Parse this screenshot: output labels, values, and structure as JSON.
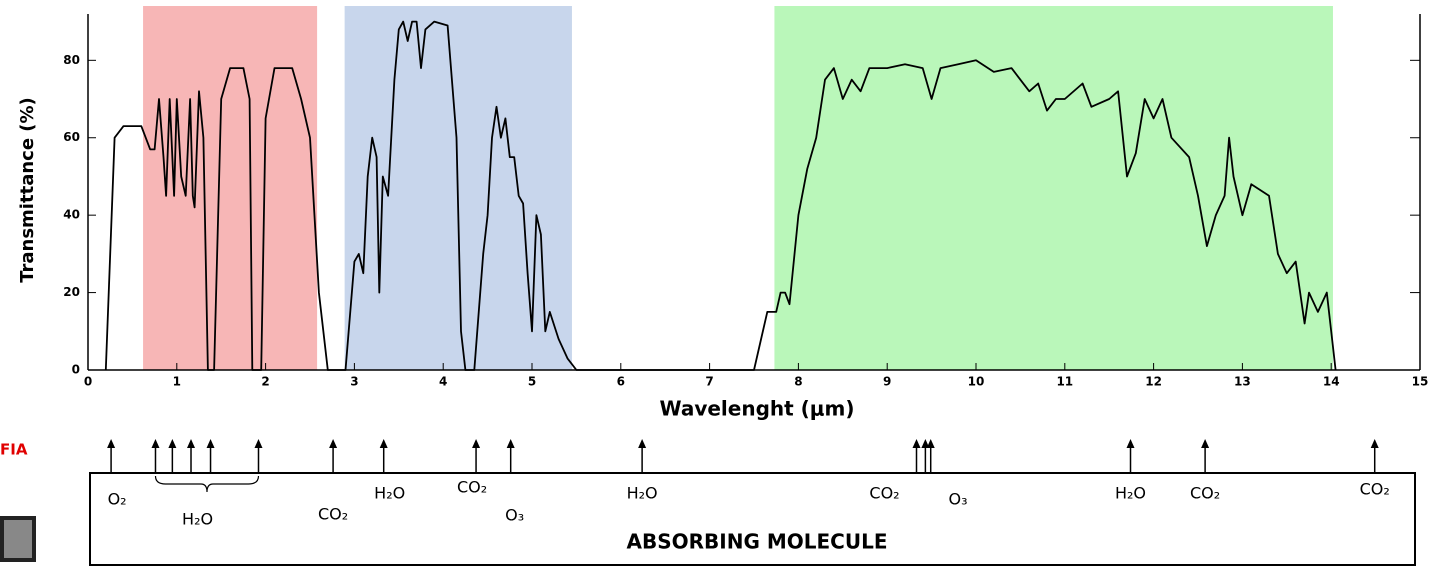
{
  "chart_data": {
    "type": "line",
    "xlabel": "Wavelenght  (μm)",
    "ylabel": "Transmittance (%)",
    "color": "#000000",
    "xlim": [
      0,
      15
    ],
    "ylim": [
      0,
      93
    ],
    "xticks": [
      0,
      1,
      2,
      3,
      4,
      5,
      6,
      7,
      8,
      9,
      10,
      11,
      12,
      13,
      14,
      15
    ],
    "yticks": [
      0,
      20,
      40,
      60,
      80
    ],
    "bands": [
      {
        "xlim": [
          0.62,
          2.58
        ],
        "color": "#f7b6b6"
      },
      {
        "xlim": [
          2.89,
          5.45
        ],
        "color": "#c8d6ec"
      },
      {
        "xlim": [
          7.73,
          14.02
        ],
        "color": "#baf7ba"
      }
    ],
    "x": [
      0.2,
      0.3,
      0.4,
      0.6,
      0.7,
      0.75,
      0.8,
      0.85,
      0.88,
      0.92,
      0.97,
      1.0,
      1.05,
      1.1,
      1.15,
      1.18,
      1.2,
      1.25,
      1.3,
      1.35,
      1.42,
      1.5,
      1.6,
      1.75,
      1.82,
      1.85,
      1.95,
      2.0,
      2.1,
      2.3,
      2.4,
      2.5,
      2.6,
      2.7,
      2.9,
      3.0,
      3.05,
      3.1,
      3.15,
      3.2,
      3.25,
      3.28,
      3.32,
      3.38,
      3.45,
      3.5,
      3.55,
      3.6,
      3.65,
      3.7,
      3.75,
      3.8,
      3.9,
      4.05,
      4.15,
      4.2,
      4.25,
      4.35,
      4.45,
      4.5,
      4.55,
      4.6,
      4.65,
      4.7,
      4.75,
      4.8,
      4.85,
      4.9,
      4.95,
      5.0,
      5.05,
      5.1,
      5.15,
      5.2,
      5.3,
      5.4,
      5.5,
      7.5,
      7.65,
      7.75,
      7.8,
      7.85,
      7.9,
      8.0,
      8.1,
      8.2,
      8.3,
      8.4,
      8.5,
      8.6,
      8.7,
      8.8,
      9.0,
      9.2,
      9.4,
      9.5,
      9.6,
      9.8,
      10.0,
      10.2,
      10.4,
      10.6,
      10.7,
      10.8,
      10.9,
      11.0,
      11.2,
      11.3,
      11.5,
      11.6,
      11.7,
      11.8,
      11.9,
      12.0,
      12.1,
      12.2,
      12.4,
      12.5,
      12.6,
      12.7,
      12.8,
      12.85,
      12.9,
      13.0,
      13.1,
      13.3,
      13.4,
      13.5,
      13.6,
      13.7,
      13.75,
      13.85,
      13.95,
      14.0,
      14.05
    ],
    "values": [
      0,
      60,
      63,
      63,
      57,
      57,
      70,
      55,
      45,
      70,
      45,
      70,
      50,
      45,
      70,
      45,
      42,
      72,
      60,
      0,
      0,
      70,
      78,
      78,
      70,
      0,
      0,
      65,
      78,
      78,
      70,
      60,
      20,
      0,
      0,
      28,
      30,
      25,
      50,
      60,
      55,
      20,
      50,
      45,
      75,
      88,
      90,
      85,
      90,
      90,
      78,
      88,
      90,
      89,
      60,
      10,
      0,
      0,
      30,
      40,
      60,
      68,
      60,
      65,
      55,
      55,
      45,
      43,
      25,
      10,
      40,
      35,
      10,
      15,
      8,
      3,
      0,
      0,
      15,
      15,
      20,
      20,
      17,
      40,
      52,
      60,
      75,
      78,
      70,
      75,
      72,
      78,
      78,
      79,
      78,
      70,
      78,
      79,
      80,
      77,
      78,
      72,
      74,
      67,
      70,
      70,
      74,
      68,
      70,
      72,
      50,
      56,
      70,
      65,
      70,
      60,
      55,
      45,
      32,
      40,
      45,
      60,
      50,
      40,
      48,
      45,
      30,
      25,
      28,
      12,
      20,
      15,
      20,
      10,
      0
    ],
    "absorbers_title": "ABSORBING MOLECULE",
    "absorbers": [
      {
        "label": "O₂",
        "x": [
          0.26
        ]
      },
      {
        "label": "H₂O",
        "x": [
          0.76,
          0.95,
          1.16,
          1.38,
          1.92
        ]
      },
      {
        "label": "CO₂",
        "x": [
          2.76
        ]
      },
      {
        "label": "H₂O",
        "x": [
          3.33
        ]
      },
      {
        "label": "CO₂",
        "x": [
          4.37
        ]
      },
      {
        "label": "O₃",
        "x": [
          4.76
        ]
      },
      {
        "label": "H₂O",
        "x": [
          6.24
        ]
      },
      {
        "label": "CO₂",
        "x": [
          9.33
        ]
      },
      {
        "label": "O₃",
        "x": [
          9.43,
          9.49
        ]
      },
      {
        "label": "H₂O",
        "x": [
          11.74
        ]
      },
      {
        "label": "CO₂",
        "x": [
          12.58
        ]
      },
      {
        "label": "CO₂",
        "x": [
          14.49
        ]
      }
    ],
    "side_text": "FIA"
  }
}
